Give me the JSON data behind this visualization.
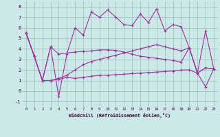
{
  "xlabel": "Windchill (Refroidissement éolien,°C)",
  "bg_color": "#cce8e8",
  "line_color": "#993399",
  "grid_color": "#99bbbb",
  "xlim": [
    -0.5,
    23.5
  ],
  "ylim": [
    -1.5,
    8.5
  ],
  "yticks": [
    -1,
    0,
    1,
    2,
    3,
    4,
    5,
    6,
    7,
    8
  ],
  "xticks": [
    0,
    1,
    2,
    3,
    4,
    5,
    6,
    7,
    8,
    9,
    10,
    11,
    12,
    13,
    14,
    15,
    16,
    17,
    18,
    19,
    20,
    21,
    22,
    23
  ],
  "series": [
    [
      5.5,
      3.3,
      1.0,
      4.2,
      -0.5,
      3.5,
      6.0,
      5.3,
      7.5,
      7.0,
      7.7,
      7.0,
      6.3,
      6.2,
      7.3,
      6.5,
      7.8,
      5.7,
      6.3,
      6.1,
      4.1,
      1.7,
      5.7,
      2.1
    ],
    [
      5.5,
      3.3,
      1.0,
      1.0,
      1.1,
      1.3,
      1.2,
      1.3,
      1.4,
      1.5,
      1.5,
      1.55,
      1.6,
      1.65,
      1.7,
      1.75,
      1.8,
      1.85,
      1.9,
      2.0,
      2.0,
      1.7,
      2.2,
      2.1
    ],
    [
      5.5,
      3.3,
      1.0,
      4.2,
      3.5,
      3.6,
      3.7,
      3.75,
      3.8,
      3.9,
      3.9,
      3.85,
      3.7,
      3.5,
      3.3,
      3.2,
      3.1,
      3.0,
      2.9,
      2.75,
      4.1,
      1.7,
      2.2,
      2.1
    ],
    [
      5.5,
      3.3,
      1.0,
      1.0,
      1.2,
      1.5,
      2.0,
      2.5,
      2.8,
      3.0,
      3.2,
      3.4,
      3.6,
      3.8,
      4.0,
      4.2,
      4.4,
      4.2,
      4.0,
      3.8,
      4.1,
      1.7,
      0.4,
      2.1
    ]
  ]
}
